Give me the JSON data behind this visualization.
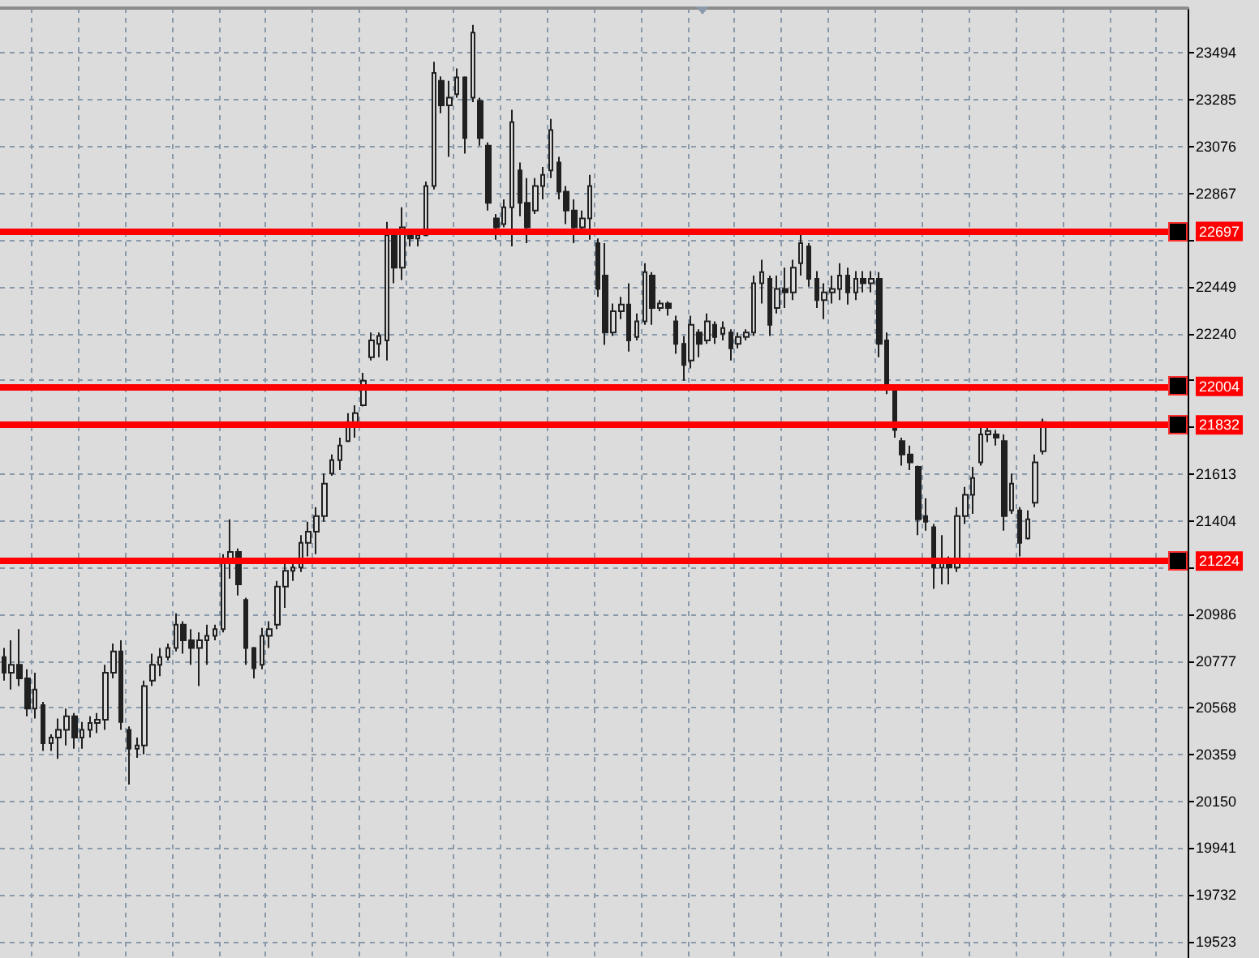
{
  "chart_data": {
    "type": "candlestick",
    "categories": [
      null,
      null,
      null,
      null,
      null,
      null,
      null,
      null,
      null,
      null,
      null,
      null,
      null,
      null,
      null,
      null,
      null,
      null,
      null,
      null,
      null,
      null,
      null,
      null,
      null,
      null,
      null,
      null,
      null,
      null,
      null,
      null,
      null,
      null,
      null,
      null,
      null,
      null,
      null,
      null,
      null,
      null,
      null,
      null,
      null,
      null,
      null,
      null,
      null,
      null,
      null,
      null,
      null,
      null,
      null,
      null,
      null,
      null,
      null,
      null,
      null,
      null,
      null,
      null,
      null,
      null,
      null,
      null,
      null,
      null,
      null,
      null,
      null,
      null,
      null,
      null,
      null,
      null,
      null,
      null,
      null,
      null,
      null,
      null,
      null,
      null,
      null,
      null,
      null,
      null,
      null,
      null,
      null,
      null,
      null,
      null,
      null,
      null,
      null,
      null,
      null,
      null,
      null,
      null,
      null,
      null,
      null,
      null,
      null,
      null,
      null,
      null,
      null,
      null,
      null,
      null,
      null,
      null,
      null,
      null,
      null,
      null,
      null,
      null,
      null,
      null,
      null,
      null,
      null,
      null,
      null,
      null,
      null,
      null,
      null,
      null,
      null,
      null,
      null,
      null,
      null,
      null,
      null,
      null,
      null,
      null,
      null,
      null,
      null,
      null,
      null,
      null
    ],
    "ohlc": [
      [
        20795,
        20835,
        20690,
        20725
      ],
      [
        20725,
        20870,
        20650,
        20760
      ],
      [
        20760,
        20920,
        20665,
        20700
      ],
      [
        20700,
        20740,
        20530,
        20565
      ],
      [
        20565,
        20725,
        20520,
        20650
      ],
      [
        20580,
        20595,
        20375,
        20410
      ],
      [
        20410,
        20450,
        20375,
        20435
      ],
      [
        20435,
        20520,
        20340,
        20470
      ],
      [
        20470,
        20565,
        20400,
        20530
      ],
      [
        20530,
        20545,
        20385,
        20435
      ],
      [
        20435,
        20505,
        20385,
        20470
      ],
      [
        20470,
        20530,
        20435,
        20500
      ],
      [
        20500,
        20545,
        20455,
        20515
      ],
      [
        20515,
        20760,
        20470,
        20725
      ],
      [
        20725,
        20855,
        20700,
        20820
      ],
      [
        20820,
        20870,
        20470,
        20505
      ],
      [
        20470,
        20485,
        20225,
        20385
      ],
      [
        20385,
        20435,
        20345,
        20400
      ],
      [
        20400,
        20690,
        20360,
        20665
      ],
      [
        20690,
        20810,
        20665,
        20760
      ],
      [
        20760,
        20835,
        20710,
        20795
      ],
      [
        20795,
        20855,
        20780,
        20835
      ],
      [
        20835,
        20990,
        20820,
        20940
      ],
      [
        20940,
        20955,
        20810,
        20870
      ],
      [
        20870,
        20920,
        20760,
        20835
      ],
      [
        20835,
        20905,
        20665,
        20870
      ],
      [
        20870,
        20940,
        20760,
        20890
      ],
      [
        20890,
        20940,
        20870,
        20920
      ],
      [
        20920,
        21255,
        20905,
        21230
      ],
      [
        21230,
        21410,
        21145,
        21265
      ],
      [
        21265,
        21280,
        21070,
        21120
      ],
      [
        21050,
        21060,
        20760,
        20835
      ],
      [
        20835,
        20840,
        20700,
        20745
      ],
      [
        20760,
        20925,
        20740,
        20890
      ],
      [
        20890,
        20955,
        20835,
        20920
      ],
      [
        20940,
        21135,
        20920,
        21110
      ],
      [
        21110,
        21215,
        21015,
        21180
      ],
      [
        21180,
        21215,
        21135,
        21195
      ],
      [
        21195,
        21340,
        21175,
        21305
      ],
      [
        21305,
        21400,
        21245,
        21355
      ],
      [
        21355,
        21465,
        21255,
        21425
      ],
      [
        21425,
        21615,
        21400,
        21570
      ],
      [
        21615,
        21700,
        21605,
        21675
      ],
      [
        21675,
        21775,
        21630,
        21740
      ],
      [
        21760,
        21885,
        21755,
        21845
      ],
      [
        21845,
        21920,
        21775,
        21885
      ],
      [
        21920,
        22065,
        21915,
        22030
      ],
      [
        22135,
        22245,
        22120,
        22210
      ],
      [
        22195,
        22245,
        22135,
        22230
      ],
      [
        22210,
        22740,
        22120,
        22680
      ],
      [
        22680,
        22700,
        22465,
        22535
      ],
      [
        22535,
        22805,
        22480,
        22715
      ],
      [
        22700,
        22705,
        22630,
        22665
      ],
      [
        22665,
        22700,
        22630,
        22680
      ],
      [
        22680,
        22920,
        22675,
        22900
      ],
      [
        22900,
        23455,
        22885,
        23405
      ],
      [
        23370,
        23390,
        23225,
        23260
      ],
      [
        23260,
        23370,
        23030,
        23295
      ],
      [
        23310,
        23425,
        23295,
        23385
      ],
      [
        23385,
        23390,
        23045,
        23115
      ],
      [
        23295,
        23620,
        23275,
        23585
      ],
      [
        23280,
        23295,
        23080,
        23115
      ],
      [
        23080,
        23095,
        22790,
        22825
      ],
      [
        22755,
        22775,
        22660,
        22715
      ],
      [
        22730,
        22840,
        22715,
        22805
      ],
      [
        22805,
        23240,
        22630,
        23185
      ],
      [
        22970,
        23005,
        22765,
        22825
      ],
      [
        22825,
        22935,
        22645,
        22715
      ],
      [
        22790,
        22935,
        22775,
        22900
      ],
      [
        22900,
        22985,
        22840,
        22950
      ],
      [
        22970,
        23200,
        22935,
        23150
      ],
      [
        23005,
        23030,
        22840,
        22875
      ],
      [
        22875,
        22900,
        22730,
        22790
      ],
      [
        22790,
        22840,
        22645,
        22715
      ],
      [
        22715,
        22790,
        22700,
        22755
      ],
      [
        22755,
        22950,
        22660,
        22900
      ],
      [
        22645,
        22665,
        22405,
        22440
      ],
      [
        22500,
        22645,
        22190,
        22245
      ],
      [
        22245,
        22375,
        22230,
        22340
      ],
      [
        22340,
        22405,
        22305,
        22370
      ],
      [
        22370,
        22465,
        22160,
        22210
      ],
      [
        22225,
        22330,
        22210,
        22295
      ],
      [
        22295,
        22555,
        22280,
        22515
      ],
      [
        22500,
        22515,
        22280,
        22355
      ],
      [
        22355,
        22390,
        22340,
        22375
      ],
      [
        22375,
        22385,
        22320,
        22355
      ],
      [
        22295,
        22320,
        22150,
        22195
      ],
      [
        22195,
        22230,
        22030,
        22100
      ],
      [
        22120,
        22320,
        22085,
        22280
      ],
      [
        22245,
        22260,
        22135,
        22195
      ],
      [
        22210,
        22330,
        22195,
        22295
      ],
      [
        22280,
        22295,
        22195,
        22225
      ],
      [
        22240,
        22295,
        22210,
        22265
      ],
      [
        22245,
        22260,
        22120,
        22175
      ],
      [
        22195,
        22245,
        22175,
        22225
      ],
      [
        22225,
        22260,
        22210,
        22245
      ],
      [
        22245,
        22500,
        22230,
        22465
      ],
      [
        22465,
        22570,
        22375,
        22515
      ],
      [
        22485,
        22500,
        22230,
        22280
      ],
      [
        22355,
        22500,
        22330,
        22440
      ],
      [
        22440,
        22535,
        22355,
        22425
      ],
      [
        22425,
        22570,
        22390,
        22535
      ],
      [
        22555,
        22700,
        22500,
        22645
      ],
      [
        22630,
        22645,
        22450,
        22485
      ],
      [
        22485,
        22520,
        22355,
        22390
      ],
      [
        22390,
        22465,
        22305,
        22425
      ],
      [
        22425,
        22500,
        22375,
        22440
      ],
      [
        22440,
        22555,
        22390,
        22500
      ],
      [
        22500,
        22535,
        22370,
        22425
      ],
      [
        22425,
        22520,
        22390,
        22485
      ],
      [
        22485,
        22520,
        22425,
        22465
      ],
      [
        22465,
        22520,
        22425,
        22485
      ],
      [
        22485,
        22515,
        22135,
        22195
      ],
      [
        22210,
        22245,
        21970,
        22005
      ],
      [
        21990,
        22005,
        21775,
        21810
      ],
      [
        21760,
        21775,
        21650,
        21700
      ],
      [
        21700,
        21740,
        21630,
        21665
      ],
      [
        21645,
        21650,
        21340,
        21410
      ],
      [
        21425,
        21505,
        21360,
        21400
      ],
      [
        21375,
        21390,
        21100,
        21195
      ],
      [
        21195,
        21340,
        21120,
        21230
      ],
      [
        21230,
        21245,
        21120,
        21195
      ],
      [
        21195,
        21465,
        21175,
        21425
      ],
      [
        21425,
        21555,
        21390,
        21520
      ],
      [
        21520,
        21645,
        21435,
        21595
      ],
      [
        21665,
        21825,
        21650,
        21790
      ],
      [
        21790,
        21825,
        21755,
        21805
      ],
      [
        21790,
        21810,
        21740,
        21775
      ],
      [
        21760,
        21790,
        21360,
        21425
      ],
      [
        21450,
        21615,
        21435,
        21570
      ],
      [
        21450,
        21465,
        21245,
        21305
      ],
      [
        21325,
        21450,
        21320,
        21410
      ],
      [
        21485,
        21700,
        21465,
        21665
      ],
      [
        21715,
        21860,
        21700,
        21845
      ],
      null,
      null,
      null,
      null,
      null,
      null,
      null,
      null,
      null,
      null,
      null,
      null,
      null,
      null,
      null,
      null,
      null,
      null
    ],
    "color": "#202020",
    "ylim": [
      19450,
      23695
    ],
    "yticks": [
      19523,
      19732,
      19941,
      20150,
      20359,
      20568,
      20777,
      20986,
      {
        "value": 21195,
        "label": null
      },
      21404,
      21613,
      {
        "value": 21822,
        "label": null
      },
      {
        "value": 22031,
        "label": null
      },
      22240,
      22449,
      {
        "value": 22658,
        "label": null
      },
      22867,
      23076,
      23285,
      23494
    ],
    "grid": true,
    "tick_labels": "y",
    "ref_lines": [
      {
        "axis": "y",
        "value": 22697,
        "label": "22697",
        "color": "#ff0000"
      },
      {
        "axis": "y",
        "value": 22004,
        "label": "22004",
        "color": "#ff0000"
      },
      {
        "axis": "y",
        "value": 21832,
        "label": "21832",
        "color": "#ff0000"
      },
      {
        "axis": "y",
        "value": 21224,
        "label": "21224",
        "color": "#ff0000"
      }
    ]
  }
}
